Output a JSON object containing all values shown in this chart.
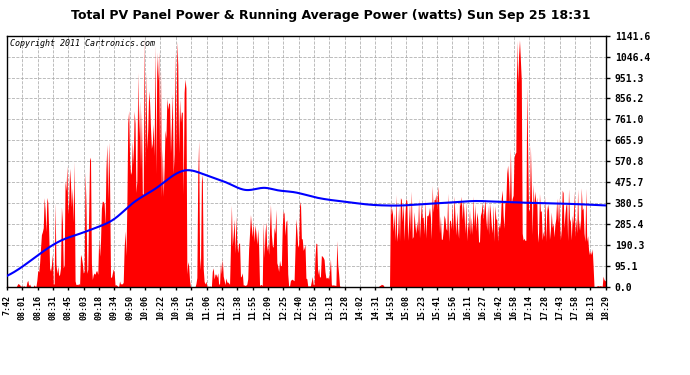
{
  "title": "Total PV Panel Power & Running Average Power (watts) Sun Sep 25 18:31",
  "copyright": "Copyright 2011 Cartronics.com",
  "background_color": "#ffffff",
  "plot_bg_color": "#ffffff",
  "bar_color": "#ff0000",
  "line_color": "#0000ff",
  "grid_color": "#aaaaaa",
  "yticks": [
    0.0,
    95.1,
    190.3,
    285.4,
    380.5,
    475.7,
    570.8,
    665.9,
    761.0,
    856.2,
    951.3,
    1046.4,
    1141.6
  ],
  "ymax": 1141.6,
  "x_labels": [
    "7:42",
    "08:01",
    "08:16",
    "08:31",
    "08:45",
    "09:03",
    "09:18",
    "09:34",
    "09:50",
    "10:06",
    "10:22",
    "10:36",
    "10:51",
    "11:06",
    "11:23",
    "11:38",
    "11:55",
    "12:09",
    "12:25",
    "12:40",
    "12:56",
    "13:13",
    "13:28",
    "14:02",
    "14:31",
    "14:53",
    "15:08",
    "15:23",
    "15:41",
    "15:56",
    "16:11",
    "16:27",
    "16:42",
    "16:58",
    "17:14",
    "17:28",
    "17:43",
    "17:58",
    "18:13",
    "18:29"
  ],
  "avg_line_points": [
    [
      0,
      50
    ],
    [
      0.03,
      100
    ],
    [
      0.06,
      160
    ],
    [
      0.09,
      210
    ],
    [
      0.12,
      240
    ],
    [
      0.15,
      270
    ],
    [
      0.18,
      310
    ],
    [
      0.21,
      380
    ],
    [
      0.25,
      450
    ],
    [
      0.28,
      510
    ],
    [
      0.3,
      530
    ],
    [
      0.33,
      510
    ],
    [
      0.37,
      470
    ],
    [
      0.4,
      440
    ],
    [
      0.43,
      450
    ],
    [
      0.45,
      440
    ],
    [
      0.48,
      430
    ],
    [
      0.51,
      410
    ],
    [
      0.54,
      395
    ],
    [
      0.57,
      385
    ],
    [
      0.6,
      375
    ],
    [
      0.63,
      370
    ],
    [
      0.66,
      370
    ],
    [
      0.69,
      375
    ],
    [
      0.72,
      380
    ],
    [
      0.75,
      385
    ],
    [
      0.78,
      390
    ],
    [
      0.81,
      388
    ],
    [
      0.84,
      385
    ],
    [
      0.87,
      382
    ],
    [
      0.9,
      380
    ],
    [
      0.93,
      378
    ],
    [
      0.96,
      375
    ],
    [
      1.0,
      370
    ]
  ]
}
